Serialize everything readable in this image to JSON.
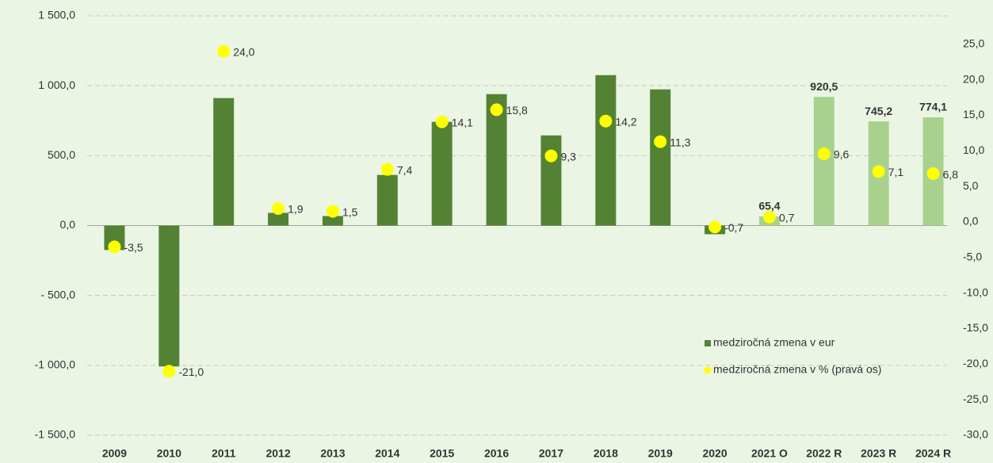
{
  "chart_data": {
    "type": "bar",
    "categories": [
      "2009",
      "2010",
      "2011",
      "2012",
      "2013",
      "2014",
      "2015",
      "2016",
      "2017",
      "2018",
      "2019",
      "2020",
      "2021 O",
      "2022 R",
      "2023 R",
      "2024 R"
    ],
    "series": [
      {
        "name": "medziročná zmena v eur",
        "type": "bar",
        "color": "#548235",
        "colors": [
          "#548235",
          "#548235",
          "#548235",
          "#548235",
          "#548235",
          "#548235",
          "#548235",
          "#548235",
          "#548235",
          "#548235",
          "#548235",
          "#548235",
          "#a9d18e",
          "#a9d18e",
          "#a9d18e",
          "#a9d18e"
        ],
        "values": [
          -175,
          -1008,
          912,
          91,
          68,
          362,
          742,
          940,
          645,
          1076,
          974,
          -62,
          65.4,
          920.5,
          745.2,
          774.1
        ],
        "value_labels": [
          null,
          null,
          null,
          null,
          null,
          null,
          null,
          null,
          null,
          null,
          null,
          null,
          "65,4",
          "920,5",
          "745,2",
          "774,1"
        ]
      },
      {
        "name": "medziročná zmena v % (pravá os)",
        "type": "scatter",
        "axis": "y2",
        "color": "#ffff00",
        "values": [
          -3.5,
          -21.0,
          24.0,
          1.9,
          1.5,
          7.4,
          14.1,
          15.8,
          9.3,
          14.2,
          11.3,
          -0.7,
          0.7,
          9.6,
          7.1,
          6.8
        ],
        "value_labels": [
          "-3,5",
          "-21,0",
          "24,0",
          "1,9",
          "1,5",
          "7,4",
          "14,1",
          "15,8",
          "9,3",
          "14,2",
          "11,3",
          "-0,7",
          "0,7",
          "9,6",
          "7,1",
          "6,8"
        ]
      }
    ],
    "ylim": [
      -1500,
      1500
    ],
    "yticks": [
      {
        "value": -1500,
        "label": "-1 500,0"
      },
      {
        "value": -1000,
        "label": "-1 000,0"
      },
      {
        "value": -500,
        "label": "- 500,0"
      },
      {
        "value": 0,
        "label": "0,0"
      },
      {
        "value": 500,
        "label": "500,0"
      },
      {
        "value": 1000,
        "label": "1 000,0"
      },
      {
        "value": 1500,
        "label": "1 500,0"
      }
    ],
    "y2lim": [
      -30,
      29
    ],
    "y2ticks": [
      {
        "value": -30,
        "label": "-30,0"
      },
      {
        "value": -25,
        "label": "-25,0"
      },
      {
        "value": -20,
        "label": "-20,0"
      },
      {
        "value": -15,
        "label": "-15,0"
      },
      {
        "value": -10,
        "label": "-10,0"
      },
      {
        "value": -5,
        "label": "-5,0"
      },
      {
        "value": 0,
        "label": "0,0"
      },
      {
        "value": 5,
        "label": "5,0"
      },
      {
        "value": 10,
        "label": "10,0"
      },
      {
        "value": 15,
        "label": "15,0"
      },
      {
        "value": 20,
        "label": "20,0"
      },
      {
        "value": 25,
        "label": "25,0"
      }
    ],
    "grid": true,
    "legend": "lower right",
    "background": "#ebf5e4"
  }
}
